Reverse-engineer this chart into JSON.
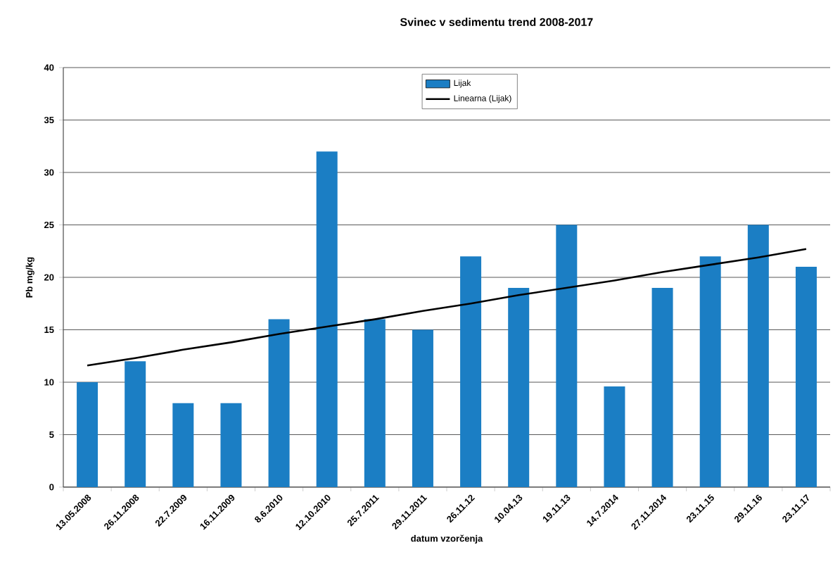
{
  "chart_data": {
    "type": "bar",
    "title": "Svinec v sedimentu trend 2008-2017",
    "xlabel": "datum vzorčenja",
    "ylabel": "Pb mg/kg",
    "categories": [
      "13.05.2008",
      "26.11.2008",
      "22.7.2009",
      "16.11.2009",
      "8.6.2010",
      "12.10.2010",
      "25.7.2011",
      "29.11.2011",
      "26.11.12",
      "10.04.13",
      "19.11.13",
      "14.7.2014",
      "27.11.2014",
      "23.11.15",
      "29.11.16",
      "23.11.17"
    ],
    "series": [
      {
        "name": "Lijak",
        "color": "#1b7ec4",
        "values": [
          10,
          12,
          8,
          8,
          16,
          32,
          16,
          15,
          22,
          19,
          25,
          9.6,
          19,
          22,
          25,
          21
        ]
      },
      {
        "name": "Linearna (Lijak)",
        "type": "line",
        "color": "#000000",
        "values": [
          11.6,
          12.3,
          13.1,
          13.8,
          14.6,
          15.3,
          16.0,
          16.8,
          17.5,
          18.3,
          19.0,
          19.7,
          20.5,
          21.2,
          21.9,
          22.7
        ]
      }
    ],
    "ylim": [
      0,
      40
    ],
    "yticks": [
      0,
      5,
      10,
      15,
      20,
      25,
      30,
      35,
      40
    ],
    "grid": "y",
    "legend": "top"
  }
}
